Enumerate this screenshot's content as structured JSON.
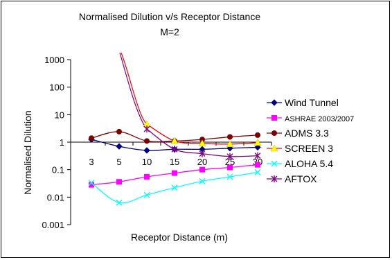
{
  "chart_data": {
    "type": "line",
    "title": "Normalised Dilution v/s Receptor Distance",
    "subtitle": "M=2",
    "xlabel": "Receptor Distance (m)",
    "ylabel": "Normalised Dilution",
    "y_scale": "log",
    "ylim": [
      0.001,
      1000
    ],
    "y_ticks": [
      "0.001",
      "0.01",
      "0.1",
      "1",
      "10",
      "100",
      "1000"
    ],
    "x": [
      3,
      5,
      10,
      15,
      20,
      25,
      30
    ],
    "x_tick_labels": [
      "3",
      "5",
      "10",
      "15",
      "20",
      "25",
      "30"
    ],
    "legend_position": "right",
    "series": [
      {
        "name": "Wind Tunnel",
        "color": "#000080",
        "marker": "diamond",
        "values": [
          1.25,
          0.7,
          0.5,
          0.55,
          0.55,
          0.6,
          0.65
        ]
      },
      {
        "name": "ASHRAE 2003/2007",
        "color": "#ff00ff",
        "marker": "square",
        "values": [
          0.028,
          0.036,
          0.055,
          0.075,
          0.1,
          0.12,
          0.15
        ]
      },
      {
        "name": "ADMS 3.3",
        "color": "#800000",
        "marker": "circle",
        "values": [
          1.4,
          2.4,
          1.1,
          1.1,
          1.25,
          1.55,
          1.8
        ]
      },
      {
        "name": "SCREEN 3",
        "color": "#ffff00",
        "marker": "triangle",
        "values": [
          null,
          null,
          4.5,
          1.1,
          0.9,
          0.85,
          0.95
        ]
      },
      {
        "name": "ALOHA 5.4",
        "color": "#00ffff",
        "marker": "x",
        "values": [
          0.033,
          0.0063,
          0.012,
          0.022,
          0.038,
          0.055,
          0.08
        ]
      },
      {
        "name": "AFTOX",
        "color": "#800080",
        "marker": "asterisk",
        "values": [
          null,
          null,
          3.0,
          0.55,
          0.38,
          0.3,
          0.32
        ]
      }
    ],
    "off_chart_lines": [
      {
        "color": "#ff0000",
        "description": "steep curve entering from top near x=5 down to x=10"
      }
    ]
  }
}
